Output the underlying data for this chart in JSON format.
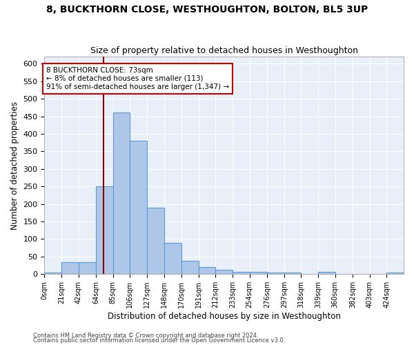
{
  "title": "8, BUCKTHORN CLOSE, WESTHOUGHTON, BOLTON, BL5 3UP",
  "subtitle": "Size of property relative to detached houses in Westhoughton",
  "xlabel": "Distribution of detached houses by size in Westhoughton",
  "ylabel": "Number of detached properties",
  "bin_edges": [
    0,
    21,
    42,
    64,
    85,
    106,
    127,
    148,
    170,
    191,
    212,
    233,
    254,
    276,
    297,
    318,
    339,
    360,
    382,
    403,
    424,
    445
  ],
  "bin_labels": [
    "0sqm",
    "21sqm",
    "42sqm",
    "64sqm",
    "85sqm",
    "106sqm",
    "127sqm",
    "148sqm",
    "170sqm",
    "191sqm",
    "212sqm",
    "233sqm",
    "254sqm",
    "276sqm",
    "297sqm",
    "318sqm",
    "339sqm",
    "360sqm",
    "382sqm",
    "403sqm",
    "424sqm"
  ],
  "counts": [
    5,
    35,
    35,
    250,
    460,
    380,
    190,
    90,
    38,
    20,
    12,
    7,
    6,
    5,
    5,
    0,
    6,
    0,
    0,
    0,
    5
  ],
  "bar_color": "#aec6e8",
  "bar_edge_color": "#5b9bd5",
  "property_size": 73,
  "vline_color": "#8b0000",
  "annotation_text": "8 BUCKTHORN CLOSE: 73sqm\n← 8% of detached houses are smaller (113)\n91% of semi-detached houses are larger (1,347) →",
  "annotation_box_color": "#ffffff",
  "annotation_box_edge": "#cc0000",
  "ylim": [
    0,
    620
  ],
  "yticks": [
    0,
    50,
    100,
    150,
    200,
    250,
    300,
    350,
    400,
    450,
    500,
    550,
    600
  ],
  "bg_color": "#e8eff8",
  "footer1": "Contains HM Land Registry data © Crown copyright and database right 2024.",
  "footer2": "Contains public sector information licensed under the Open Government Licence v3.0.",
  "title_fontsize": 10,
  "subtitle_fontsize": 9
}
